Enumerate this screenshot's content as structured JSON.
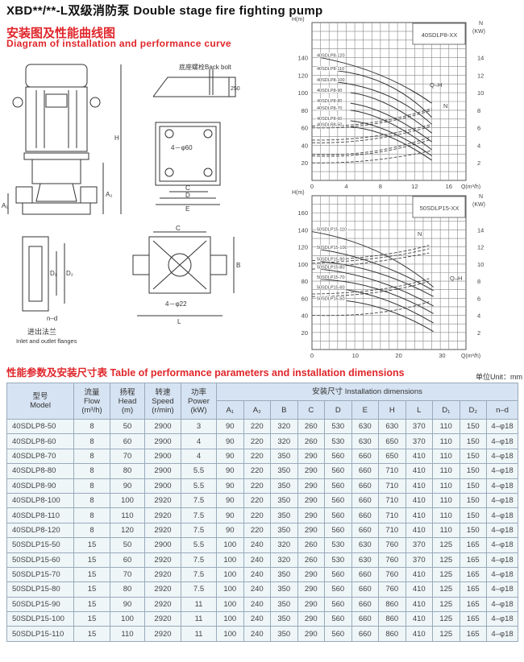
{
  "header": {
    "title": "XBD**/**-L双级消防泵 Double stage fire fighting pump",
    "subtitle_cn": "安装图及性能曲线图",
    "subtitle_en": "Diagram of installation and performance curve"
  },
  "drawings": {
    "back_bolt": "底座螺栓Back bolt",
    "depth": "250",
    "foundation_holes": "4－φ60",
    "base_holes": "4－φ22",
    "flange_cn": "进出法兰",
    "flange_en": "Inlet and outlet flanges",
    "C": "C",
    "D": "D",
    "E": "E",
    "H": "H",
    "A1": "A₁",
    "A2": "A₂",
    "D1": "D₁",
    "D2": "D₂",
    "nd": "n–d",
    "L": "L",
    "B": "B",
    "C2": "C"
  },
  "charts": [
    {
      "id": "40",
      "label": "40SDLP8-XX",
      "ylabel": "H(m)",
      "y2label": "N",
      "y2unit": "(KW)",
      "xlabel": "Q(m³/h)",
      "xticks": [
        0,
        4,
        8,
        12,
        16
      ],
      "yticks": [
        20,
        40,
        60,
        80,
        100,
        120,
        140
      ],
      "y2ticks": [
        2,
        4,
        6,
        8,
        10,
        12,
        14
      ],
      "xlim": [
        0,
        18
      ],
      "ylim": [
        0,
        180
      ],
      "y2lim": [
        0,
        18
      ],
      "qh_tag": "Q–H",
      "n_tag": "N",
      "curves": [
        {
          "name": "40SDLP8-120",
          "pts": [
            [
              1,
              140
            ],
            [
              8,
              120
            ],
            [
              14,
              88
            ]
          ]
        },
        {
          "name": "40SDLP8-110",
          "pts": [
            [
              3,
              125
            ],
            [
              9,
              108
            ],
            [
              14,
              72
            ]
          ]
        },
        {
          "name": "40SDLP8-100",
          "pts": [
            [
              3,
              112
            ],
            [
              9,
              96
            ],
            [
              14,
              64
            ]
          ]
        },
        {
          "name": "40SDLP8-90",
          "pts": [
            [
              4.5,
              100
            ],
            [
              9,
              86
            ],
            [
              14,
              54
            ]
          ]
        },
        {
          "name": "40SDLP8-80",
          "pts": [
            [
              4.5,
              88
            ],
            [
              9,
              74
            ],
            [
              14,
              44
            ]
          ]
        },
        {
          "name": "40SDLP8-70",
          "pts": [
            [
              4.5,
              80
            ],
            [
              9,
              66
            ],
            [
              14,
              35
            ]
          ]
        },
        {
          "name": "40SDLP8-60",
          "pts": [
            [
              4.5,
              68
            ],
            [
              9,
              56
            ],
            [
              14,
              28
            ]
          ]
        },
        {
          "name": "40SDLP8-50",
          "pts": [
            [
              4.5,
              61
            ],
            [
              9,
              50
            ],
            [
              14,
              23
            ]
          ]
        }
      ],
      "power": [
        [
          [
            0,
            6.2
          ],
          [
            7,
            6.6
          ],
          [
            14,
            8.2
          ]
        ],
        [
          [
            0,
            6
          ],
          [
            7,
            6.4
          ],
          [
            14,
            8
          ]
        ],
        [
          [
            0,
            4.6
          ],
          [
            7,
            5
          ],
          [
            14,
            6.4
          ]
        ],
        [
          [
            0,
            4.3
          ],
          [
            7,
            4.7
          ],
          [
            14,
            6.2
          ]
        ],
        [
          [
            0,
            3
          ],
          [
            7,
            3.3
          ],
          [
            14,
            5
          ]
        ],
        [
          [
            0,
            2.8
          ],
          [
            7,
            3.1
          ],
          [
            14,
            4.7
          ]
        ],
        [
          [
            0,
            2
          ],
          [
            7,
            2.3
          ],
          [
            14,
            3.4
          ]
        ]
      ]
    },
    {
      "id": "50",
      "label": "50SDLP15-XX",
      "ylabel": "H(m)",
      "y2label": "N",
      "y2unit": "(KW)",
      "xlabel": "Q(m³/h)",
      "xticks": [
        0,
        10,
        20,
        30
      ],
      "yticks": [
        20,
        40,
        60,
        80,
        100,
        120,
        140,
        160
      ],
      "y2ticks": [
        2,
        4,
        6,
        8,
        10,
        12,
        14
      ],
      "xlim": [
        0,
        35.5
      ],
      "ylim": [
        0,
        180
      ],
      "y2lim": [
        0,
        18
      ],
      "qh_tag": "Q–H",
      "n_tag": "N",
      "curves": [
        {
          "name": "50SDLP15-110",
          "pts": [
            [
              0,
              138
            ],
            [
              15,
              115
            ],
            [
              28,
              73
            ]
          ]
        },
        {
          "name": "50SDLP15-100",
          "pts": [
            [
              2,
              117
            ],
            [
              15,
              100
            ],
            [
              28,
              69
            ]
          ]
        },
        {
          "name": "50SDLP15-90",
          "pts": [
            [
              2,
              103
            ],
            [
              15,
              90
            ],
            [
              28,
              62
            ]
          ]
        },
        {
          "name": "50SDLP15-80",
          "pts": [
            [
              2,
              94
            ],
            [
              15,
              80
            ],
            [
              28,
              51
            ]
          ]
        },
        {
          "name": "50SDLP15-70",
          "pts": [
            [
              2,
              82
            ],
            [
              15,
              71
            ],
            [
              28,
              42
            ]
          ]
        },
        {
          "name": "50SDLP15-60",
          "pts": [
            [
              8,
              70
            ],
            [
              18,
              56
            ],
            [
              28,
              31
            ]
          ]
        },
        {
          "name": "50SDLP15-50",
          "pts": [
            [
              8,
              57
            ],
            [
              18,
              45
            ],
            [
              28,
              21
            ]
          ]
        }
      ],
      "power": [
        [
          [
            0,
            10.4
          ],
          [
            15,
            11
          ],
          [
            27,
            12.2
          ]
        ],
        [
          [
            0,
            10.1
          ],
          [
            15,
            10.7
          ],
          [
            27,
            11.8
          ]
        ],
        [
          [
            0,
            9.4
          ],
          [
            15,
            10.3
          ],
          [
            27,
            11.3
          ]
        ],
        [
          [
            0,
            6.5
          ],
          [
            15,
            7
          ],
          [
            27,
            8.3
          ]
        ],
        [
          [
            0,
            6.2
          ],
          [
            15,
            6.7
          ],
          [
            27,
            8
          ]
        ],
        [
          [
            0,
            4
          ],
          [
            15,
            4.3
          ],
          [
            27,
            5.6
          ]
        ]
      ]
    }
  ],
  "table": {
    "title": "性能参数及安装尺寸表 Table of performance parameters and installation dimensions",
    "unit": "单位Unit：mm",
    "head": {
      "model": [
        "型号",
        "Model"
      ],
      "flow": [
        "流量",
        "Flow",
        "(m³/h)"
      ],
      "head": [
        "扬程",
        "Head",
        "(m)"
      ],
      "speed": [
        "转速",
        "Speed",
        "(r/min)"
      ],
      "power": [
        "功率",
        "Power",
        "(kW)"
      ],
      "dims": "安装尺寸 Installation dimensions"
    },
    "dim_cols": [
      "A₁",
      "A₂",
      "B",
      "C",
      "D",
      "E",
      "H",
      "L",
      "D₁",
      "D₂",
      "n–d"
    ],
    "rows": [
      [
        "40SDLP8-50",
        "8",
        "50",
        "2900",
        "3",
        "90",
        "220",
        "320",
        "260",
        "530",
        "630",
        "630",
        "370",
        "110",
        "150",
        "4–φ18"
      ],
      [
        "40SDLP8-60",
        "8",
        "60",
        "2900",
        "4",
        "90",
        "220",
        "320",
        "260",
        "530",
        "630",
        "650",
        "370",
        "110",
        "150",
        "4–φ18"
      ],
      [
        "40SDLP8-70",
        "8",
        "70",
        "2900",
        "4",
        "90",
        "220",
        "350",
        "290",
        "560",
        "660",
        "650",
        "410",
        "110",
        "150",
        "4–φ18"
      ],
      [
        "40SDLP8-80",
        "8",
        "80",
        "2900",
        "5.5",
        "90",
        "220",
        "350",
        "290",
        "560",
        "660",
        "710",
        "410",
        "110",
        "150",
        "4–φ18"
      ],
      [
        "40SDLP8-90",
        "8",
        "90",
        "2900",
        "5.5",
        "90",
        "220",
        "350",
        "290",
        "560",
        "660",
        "710",
        "410",
        "110",
        "150",
        "4–φ18"
      ],
      [
        "40SDLP8-100",
        "8",
        "100",
        "2920",
        "7.5",
        "90",
        "220",
        "350",
        "290",
        "560",
        "660",
        "710",
        "410",
        "110",
        "150",
        "4–φ18"
      ],
      [
        "40SDLP8-110",
        "8",
        "110",
        "2920",
        "7.5",
        "90",
        "220",
        "350",
        "290",
        "560",
        "660",
        "710",
        "410",
        "110",
        "150",
        "4–φ18"
      ],
      [
        "40SDLP8-120",
        "8",
        "120",
        "2920",
        "7.5",
        "90",
        "220",
        "350",
        "290",
        "560",
        "660",
        "710",
        "410",
        "110",
        "150",
        "4–φ18"
      ],
      [
        "50SDLP15-50",
        "15",
        "50",
        "2900",
        "5.5",
        "100",
        "240",
        "320",
        "260",
        "530",
        "630",
        "760",
        "370",
        "125",
        "165",
        "4–φ18"
      ],
      [
        "50SDLP15-60",
        "15",
        "60",
        "2920",
        "7.5",
        "100",
        "240",
        "320",
        "260",
        "530",
        "630",
        "760",
        "370",
        "125",
        "165",
        "4–φ18"
      ],
      [
        "50SDLP15-70",
        "15",
        "70",
        "2920",
        "7.5",
        "100",
        "240",
        "350",
        "290",
        "560",
        "660",
        "760",
        "410",
        "125",
        "165",
        "4–φ18"
      ],
      [
        "50SDLP15-80",
        "15",
        "80",
        "2920",
        "7.5",
        "100",
        "240",
        "350",
        "290",
        "560",
        "660",
        "760",
        "410",
        "125",
        "165",
        "4–φ18"
      ],
      [
        "50SDLP15-90",
        "15",
        "90",
        "2920",
        "11",
        "100",
        "240",
        "350",
        "290",
        "560",
        "660",
        "860",
        "410",
        "125",
        "165",
        "4–φ18"
      ],
      [
        "50SDLP15-100",
        "15",
        "100",
        "2920",
        "11",
        "100",
        "240",
        "350",
        "290",
        "560",
        "660",
        "860",
        "410",
        "125",
        "165",
        "4–φ18"
      ],
      [
        "50SDLP15-110",
        "15",
        "110",
        "2920",
        "11",
        "100",
        "240",
        "350",
        "290",
        "560",
        "660",
        "860",
        "410",
        "125",
        "165",
        "4–φ18"
      ]
    ]
  }
}
